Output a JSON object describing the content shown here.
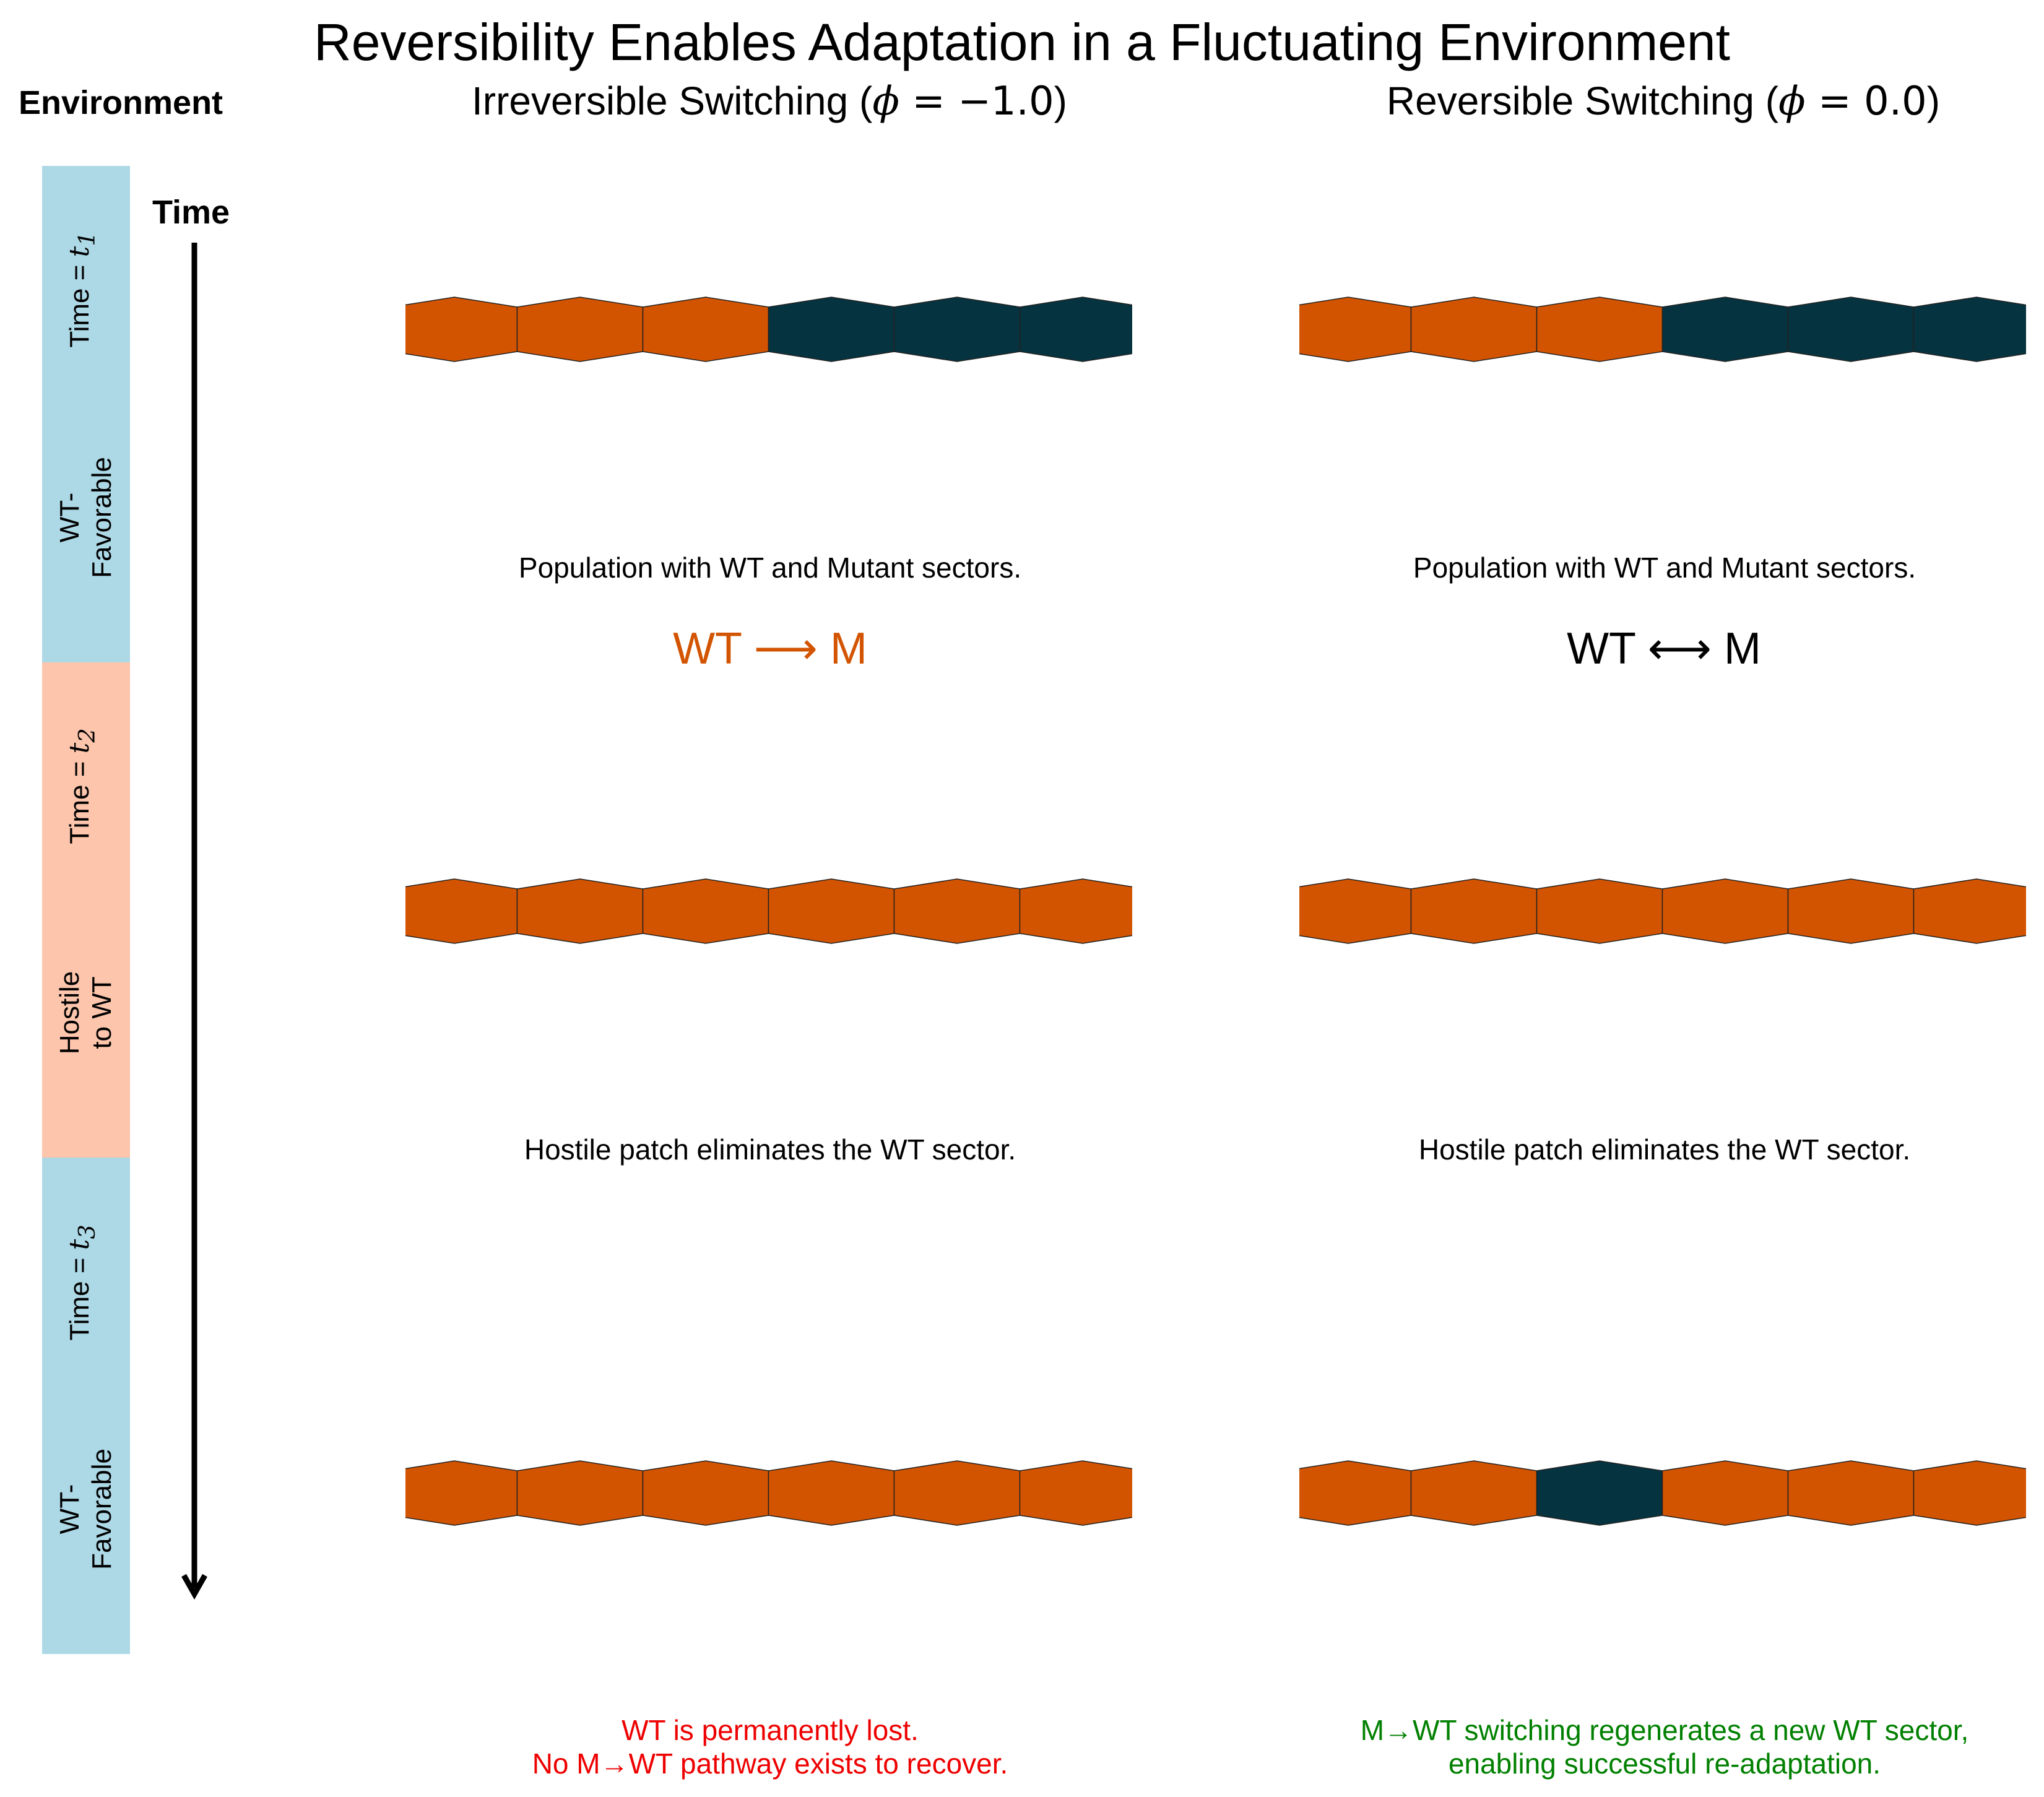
{
  "title": "Reversibility Enables Adaptation in a Fluctuating Environment",
  "columns": [
    {
      "title_prefix": "Irreversible Switching (",
      "phi_symbol": "ϕ",
      "phi_value": " = −1.0",
      "title_suffix": ")",
      "rule": {
        "left": "WT",
        "arrow": "⟶",
        "right": "M",
        "color": "#d35400"
      },
      "captions": [
        "Population with WT and Mutant sectors.",
        "Hostile patch eliminates the WT sector."
      ],
      "outcome": [
        "WT is permanently lost.",
        "No M→WT pathway exists to recover."
      ],
      "outcome_color": "#ee0000",
      "rows": [
        [
          "M",
          "M",
          "M",
          "WT",
          "WT",
          "WT"
        ],
        [
          "M",
          "M",
          "M",
          "M",
          "M",
          "M"
        ],
        [
          "M",
          "M",
          "M",
          "M",
          "M",
          "M"
        ]
      ]
    },
    {
      "title_prefix": "Reversible Switching (",
      "phi_symbol": "ϕ",
      "phi_value": " = 0.0",
      "title_suffix": ")",
      "rule": {
        "left": "WT",
        "arrow": "⟷",
        "right": "M",
        "color": "#000000"
      },
      "captions": [
        "Population with WT and Mutant sectors.",
        "Hostile patch eliminates the WT sector."
      ],
      "outcome": [
        "M→WT switching regenerates a new WT sector,",
        "enabling successful re-adaptation."
      ],
      "outcome_color": "#008000",
      "rows": [
        [
          "M",
          "M",
          "M",
          "WT",
          "WT",
          "WT"
        ],
        [
          "M",
          "M",
          "M",
          "M",
          "M",
          "M"
        ],
        [
          "M",
          "M",
          "WT",
          "M",
          "M",
          "M"
        ]
      ]
    }
  ],
  "environment": {
    "heading": "Environment",
    "time_heading": "Time",
    "bands": [
      {
        "time_prefix": "Time = ",
        "time_var": "t",
        "time_sub": "1",
        "label_line1": "WT-",
        "label_line2": "Favorable",
        "color": "#add8e6"
      },
      {
        "time_prefix": "Time = ",
        "time_var": "t",
        "time_sub": "2",
        "label_line1": "Hostile",
        "label_line2": "to WT",
        "color": "#fcc5ac"
      },
      {
        "time_prefix": "Time = ",
        "time_var": "t",
        "time_sub": "3",
        "label_line1": "WT-",
        "label_line2": "Favorable",
        "color": "#add8e6"
      }
    ]
  },
  "colors": {
    "WT": "#053340",
    "M": "#d35400"
  }
}
